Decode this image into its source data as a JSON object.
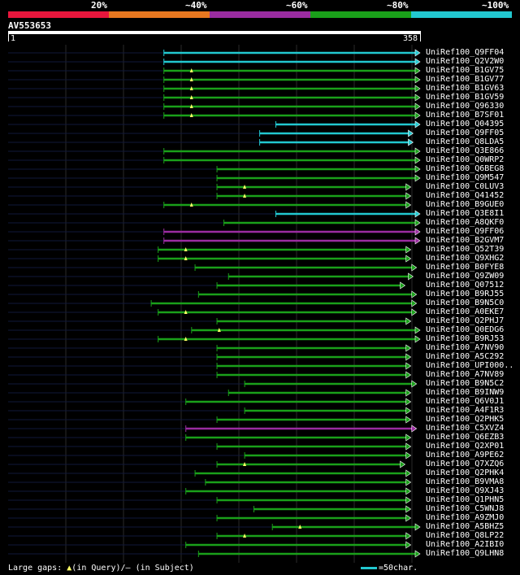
{
  "scale": {
    "labels": [
      "20%",
      "~40%",
      "~60%",
      "~80%",
      "~100%"
    ],
    "colors": [
      "#e8163c",
      "#e87820",
      "#9a2ca0",
      "#1aa01a",
      "#22c8d0"
    ]
  },
  "query": {
    "name": "AV553653",
    "start": "1",
    "end": "358"
  },
  "footer": {
    "gaps_label": "Large gaps:",
    "in_query": "(in Query)",
    "in_subject": "/– (in Subject)",
    "legend": "=50char."
  },
  "colors": {
    "cyan": "#22c8d0",
    "green": "#1aa01a",
    "purple": "#9a2ca0",
    "background": "#000000",
    "grid": "#2a2a2a"
  },
  "hits": [
    {
      "id": "UniRef100_Q9FF04",
      "start": 136,
      "end": 358,
      "color": "cyan",
      "arrow": true,
      "tri": false
    },
    {
      "id": "UniRef100_Q2V2W0",
      "start": 136,
      "end": 358,
      "color": "cyan",
      "arrow": true,
      "tri": false
    },
    {
      "id": "UniRef100_B1GV75",
      "start": 136,
      "end": 358,
      "color": "green",
      "arrow": true,
      "tri": true
    },
    {
      "id": "UniRef100_B1GV77",
      "start": 136,
      "end": 358,
      "color": "green",
      "arrow": true,
      "tri": true
    },
    {
      "id": "UniRef100_B1GV63",
      "start": 136,
      "end": 358,
      "color": "green",
      "arrow": true,
      "tri": true
    },
    {
      "id": "UniRef100_B1GV59",
      "start": 136,
      "end": 358,
      "color": "green",
      "arrow": true,
      "tri": true
    },
    {
      "id": "UniRef100_Q96330",
      "start": 136,
      "end": 358,
      "color": "green",
      "arrow": true,
      "tri": true
    },
    {
      "id": "UniRef100_B7SF01",
      "start": 136,
      "end": 358,
      "color": "green",
      "arrow": true,
      "tri": true
    },
    {
      "id": "UniRef100_Q04395",
      "start": 233,
      "end": 358,
      "color": "cyan",
      "arrow": true,
      "tri": false
    },
    {
      "id": "UniRef100_Q9FF05",
      "start": 219,
      "end": 352,
      "color": "cyan",
      "arrow": true,
      "tri": false
    },
    {
      "id": "UniRef100_Q8LDA5",
      "start": 219,
      "end": 352,
      "color": "cyan",
      "arrow": true,
      "tri": false
    },
    {
      "id": "UniRef100_Q3E866",
      "start": 136,
      "end": 358,
      "color": "green",
      "arrow": true,
      "tri": false
    },
    {
      "id": "UniRef100_Q0WRP2",
      "start": 136,
      "end": 358,
      "color": "green",
      "arrow": true,
      "tri": false
    },
    {
      "id": "UniRef100_Q6BEG8",
      "start": 182,
      "end": 358,
      "color": "green",
      "arrow": true,
      "tri": false
    },
    {
      "id": "UniRef100_Q9M547",
      "start": 182,
      "end": 358,
      "color": "green",
      "arrow": true,
      "tri": false
    },
    {
      "id": "UniRef100_C0LUV3",
      "start": 182,
      "end": 350,
      "color": "green",
      "arrow": true,
      "tri": true
    },
    {
      "id": "UniRef100_Q41452",
      "start": 182,
      "end": 350,
      "color": "green",
      "arrow": true,
      "tri": true
    },
    {
      "id": "UniRef100_B9GUE0",
      "start": 136,
      "end": 350,
      "color": "green",
      "arrow": true,
      "tri": true
    },
    {
      "id": "UniRef100_Q3E8I1",
      "start": 233,
      "end": 358,
      "color": "cyan",
      "arrow": true,
      "tri": false
    },
    {
      "id": "UniRef100_A8QKF0",
      "start": 188,
      "end": 358,
      "color": "green",
      "arrow": true,
      "tri": false
    },
    {
      "id": "UniRef100_Q9FF06",
      "start": 136,
      "end": 358,
      "color": "purple",
      "arrow": true,
      "tri": false
    },
    {
      "id": "UniRef100_B2GVM7",
      "start": 136,
      "end": 358,
      "color": "purple",
      "arrow": true,
      "tri": false
    },
    {
      "id": "UniRef100_Q52T39",
      "start": 131,
      "end": 350,
      "color": "green",
      "arrow": true,
      "tri": true
    },
    {
      "id": "UniRef100_Q9XHG2",
      "start": 131,
      "end": 350,
      "color": "green",
      "arrow": true,
      "tri": true
    },
    {
      "id": "UniRef100_B0FYE8",
      "start": 163,
      "end": 355,
      "color": "green",
      "arrow": true,
      "tri": false
    },
    {
      "id": "UniRef100_Q9ZW09",
      "start": 192,
      "end": 352,
      "color": "green",
      "arrow": true,
      "tri": false
    },
    {
      "id": "UniRef100_Q07512",
      "start": 182,
      "end": 345,
      "color": "green",
      "arrow": true,
      "tri": false
    },
    {
      "id": "UniRef100_B9RJ55",
      "start": 166,
      "end": 355,
      "color": "green",
      "arrow": true,
      "tri": false
    },
    {
      "id": "UniRef100_B9N5C0",
      "start": 125,
      "end": 355,
      "color": "green",
      "arrow": true,
      "tri": false
    },
    {
      "id": "UniRef100_A0EKE7",
      "start": 131,
      "end": 355,
      "color": "green",
      "arrow": true,
      "tri": true
    },
    {
      "id": "UniRef100_Q2PHJ7",
      "start": 182,
      "end": 350,
      "color": "green",
      "arrow": true,
      "tri": false
    },
    {
      "id": "UniRef100_Q0EDG6",
      "start": 160,
      "end": 358,
      "color": "green",
      "arrow": true,
      "tri": true
    },
    {
      "id": "UniRef100_B9RJ53",
      "start": 131,
      "end": 358,
      "color": "green",
      "arrow": true,
      "tri": true
    },
    {
      "id": "UniRef100_A7NV90",
      "start": 182,
      "end": 350,
      "color": "green",
      "arrow": true,
      "tri": false
    },
    {
      "id": "UniRef100_A5C292",
      "start": 182,
      "end": 350,
      "color": "green",
      "arrow": true,
      "tri": false
    },
    {
      "id": "UniRef100_UPI000..",
      "start": 182,
      "end": 350,
      "color": "green",
      "arrow": true,
      "tri": false
    },
    {
      "id": "UniRef100_A7NV89",
      "start": 182,
      "end": 350,
      "color": "green",
      "arrow": true,
      "tri": false
    },
    {
      "id": "UniRef100_B9N5C2",
      "start": 206,
      "end": 355,
      "color": "green",
      "arrow": true,
      "tri": false
    },
    {
      "id": "UniRef100_B9INW9",
      "start": 192,
      "end": 350,
      "color": "green",
      "arrow": true,
      "tri": false
    },
    {
      "id": "UniRef100_Q6V0J1",
      "start": 155,
      "end": 350,
      "color": "green",
      "arrow": true,
      "tri": false
    },
    {
      "id": "UniRef100_A4F1R3",
      "start": 206,
      "end": 350,
      "color": "green",
      "arrow": true,
      "tri": false
    },
    {
      "id": "UniRef100_Q2PHK5",
      "start": 182,
      "end": 350,
      "color": "green",
      "arrow": true,
      "tri": false
    },
    {
      "id": "UniRef100_C5XVZ4",
      "start": 155,
      "end": 355,
      "color": "purple",
      "arrow": true,
      "tri": false
    },
    {
      "id": "UniRef100_Q6EZB3",
      "start": 155,
      "end": 350,
      "color": "green",
      "arrow": true,
      "tri": false
    },
    {
      "id": "UniRef100_Q2XP01",
      "start": 182,
      "end": 350,
      "color": "green",
      "arrow": true,
      "tri": false
    },
    {
      "id": "UniRef100_A9PE62",
      "start": 206,
      "end": 350,
      "color": "green",
      "arrow": true,
      "tri": false
    },
    {
      "id": "UniRef100_Q7XZQ6",
      "start": 182,
      "end": 345,
      "color": "green",
      "arrow": true,
      "tri": true
    },
    {
      "id": "UniRef100_Q2PHK4",
      "start": 163,
      "end": 350,
      "color": "green",
      "arrow": true,
      "tri": false
    },
    {
      "id": "UniRef100_B9VMA8",
      "start": 172,
      "end": 350,
      "color": "green",
      "arrow": true,
      "tri": false
    },
    {
      "id": "UniRef100_Q9XJ43",
      "start": 155,
      "end": 350,
      "color": "green",
      "arrow": true,
      "tri": false
    },
    {
      "id": "UniRef100_Q1PHN5",
      "start": 182,
      "end": 350,
      "color": "green",
      "arrow": true,
      "tri": false
    },
    {
      "id": "UniRef100_C5WNJ8",
      "start": 214,
      "end": 350,
      "color": "green",
      "arrow": true,
      "tri": false
    },
    {
      "id": "UniRef100_A9ZMJ0",
      "start": 182,
      "end": 350,
      "color": "green",
      "arrow": true,
      "tri": false
    },
    {
      "id": "UniRef100_A5BHZ5",
      "start": 230,
      "end": 358,
      "color": "green",
      "arrow": true,
      "tri": true
    },
    {
      "id": "UniRef100_Q8LP22",
      "start": 182,
      "end": 350,
      "color": "green",
      "arrow": true,
      "tri": true
    },
    {
      "id": "UniRef100_A2IBI0",
      "start": 155,
      "end": 350,
      "color": "green",
      "arrow": true,
      "tri": false
    },
    {
      "id": "UniRef100_Q9LHN8",
      "start": 166,
      "end": 358,
      "color": "green",
      "arrow": true,
      "tri": false
    }
  ]
}
